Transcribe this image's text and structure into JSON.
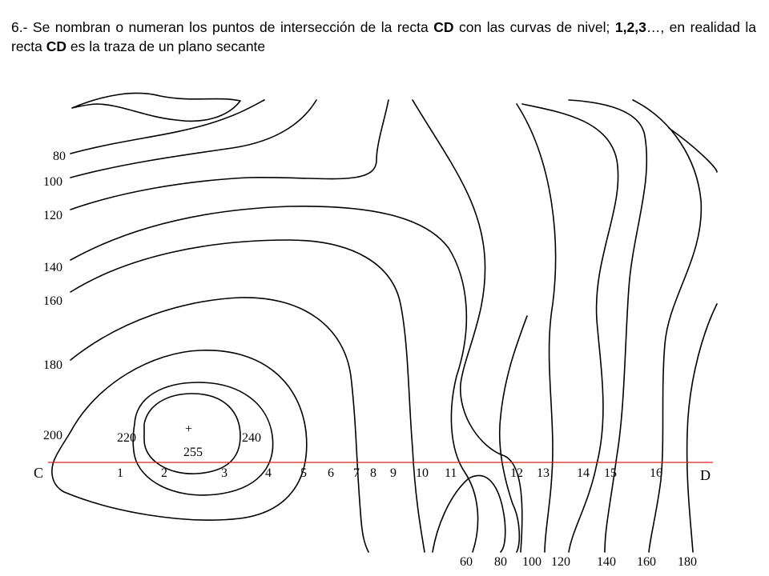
{
  "heading": {
    "t1": "6.- Se nombran o numeran los puntos de intersección de la recta ",
    "b1": "CD",
    "t2": " con las curvas de nivel; ",
    "b2": "1,2,3",
    "t3": "…, en realidad la recta ",
    "b3": "CD",
    "t4": " es la traza de un plano secante"
  },
  "map": {
    "left_labels": [
      "80",
      "100",
      "120",
      "140",
      "160",
      "180",
      "200"
    ],
    "peak_labels": {
      "l220": "220",
      "l240": "240",
      "l255": "255",
      "peak": "+"
    },
    "line": {
      "start": "C",
      "end": "D",
      "color": "#e02020"
    },
    "points": [
      "1",
      "2",
      "3",
      "4",
      "5",
      "6",
      "7",
      "8",
      "9",
      "10",
      "11",
      "12",
      "13",
      "14",
      "15",
      "16"
    ],
    "bottom_labels": [
      "60",
      "80",
      "100",
      "120",
      "140",
      "160",
      "180"
    ]
  }
}
